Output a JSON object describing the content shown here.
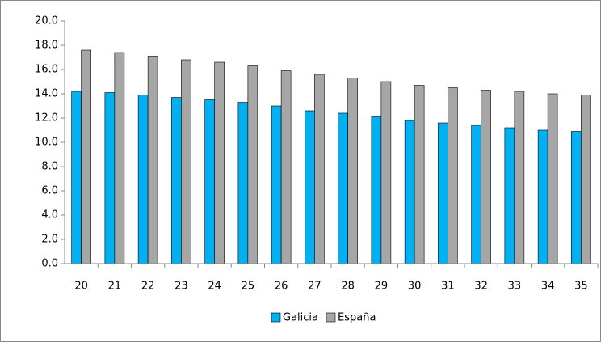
{
  "chart_data": {
    "type": "bar",
    "categories": [
      "20",
      "21",
      "22",
      "23",
      "24",
      "25",
      "26",
      "27",
      "28",
      "29",
      "30",
      "31",
      "32",
      "33",
      "34",
      "35"
    ],
    "series": [
      {
        "name": "Galicia",
        "color": "#00b0f0",
        "values": [
          14.2,
          14.1,
          13.9,
          13.7,
          13.5,
          13.3,
          13.0,
          12.6,
          12.4,
          12.1,
          11.8,
          11.6,
          11.4,
          11.2,
          11.0,
          10.9
        ]
      },
      {
        "name": "España",
        "color": "#a6a6a6",
        "values": [
          17.6,
          17.4,
          17.1,
          16.8,
          16.6,
          16.3,
          15.9,
          15.6,
          15.3,
          15.0,
          14.7,
          14.5,
          14.3,
          14.2,
          14.0,
          13.9
        ]
      }
    ],
    "ylim": [
      0,
      20
    ],
    "yticks": [
      {
        "value": 0,
        "label": "0.0"
      },
      {
        "value": 2,
        "label": "2.0"
      },
      {
        "value": 4,
        "label": "4.0"
      },
      {
        "value": 6,
        "label": "6.0"
      },
      {
        "value": 8,
        "label": "8.0"
      },
      {
        "value": 10,
        "label": "10.0"
      },
      {
        "value": 12,
        "label": "12.0"
      },
      {
        "value": 14,
        "label": "14.0"
      },
      {
        "value": 16,
        "label": "16.0"
      },
      {
        "value": 18,
        "label": "18.0"
      },
      {
        "value": 20,
        "label": "20.0"
      }
    ],
    "grid": false,
    "legend": "bottom"
  }
}
